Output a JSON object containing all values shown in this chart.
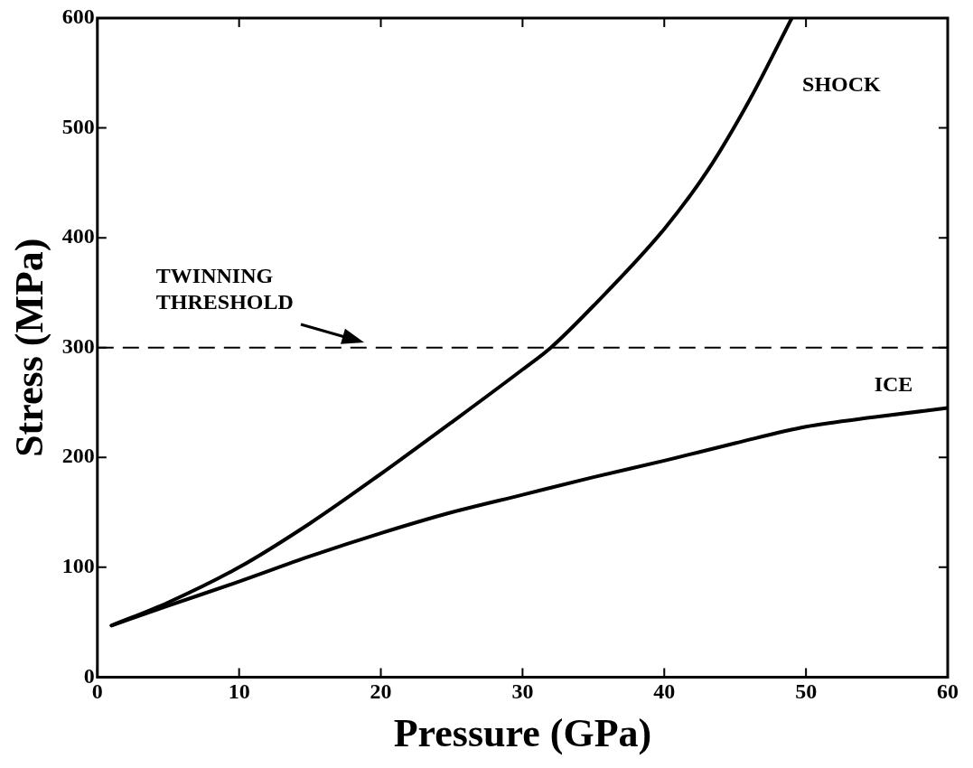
{
  "chart_data": {
    "type": "line",
    "xlabel": "Pressure (GPa)",
    "ylabel": "Stress (MPa)",
    "xlim": [
      0,
      60
    ],
    "xticks": [
      0,
      10,
      20,
      30,
      40,
      50,
      60
    ],
    "ylim": [
      0,
      600
    ],
    "yticks": [
      0,
      100,
      200,
      300,
      400,
      500,
      600
    ],
    "grid": false,
    "legend": false,
    "marker": "none",
    "line_style": "solid",
    "series": [
      {
        "name": "SHOCK",
        "color": "#000000",
        "x": [
          1,
          5,
          10,
          15,
          20,
          25,
          30,
          32,
          35,
          40,
          43,
          46,
          49
        ],
        "values": [
          47,
          68,
          100,
          140,
          185,
          232,
          280,
          300,
          338,
          408,
          460,
          525,
          600
        ]
      },
      {
        "name": "ICE",
        "color": "#000000",
        "x": [
          1,
          5,
          10,
          15,
          20,
          25,
          30,
          35,
          40,
          45,
          50,
          55,
          60
        ],
        "values": [
          47,
          65,
          87,
          110,
          131,
          150,
          166,
          182,
          197,
          213,
          228,
          237,
          245
        ]
      }
    ],
    "ref_lines": [
      {
        "axis": "y",
        "value": 300,
        "label": "TWINNING THRESHOLD",
        "color": "#000000",
        "line_style": "dashed"
      }
    ]
  }
}
